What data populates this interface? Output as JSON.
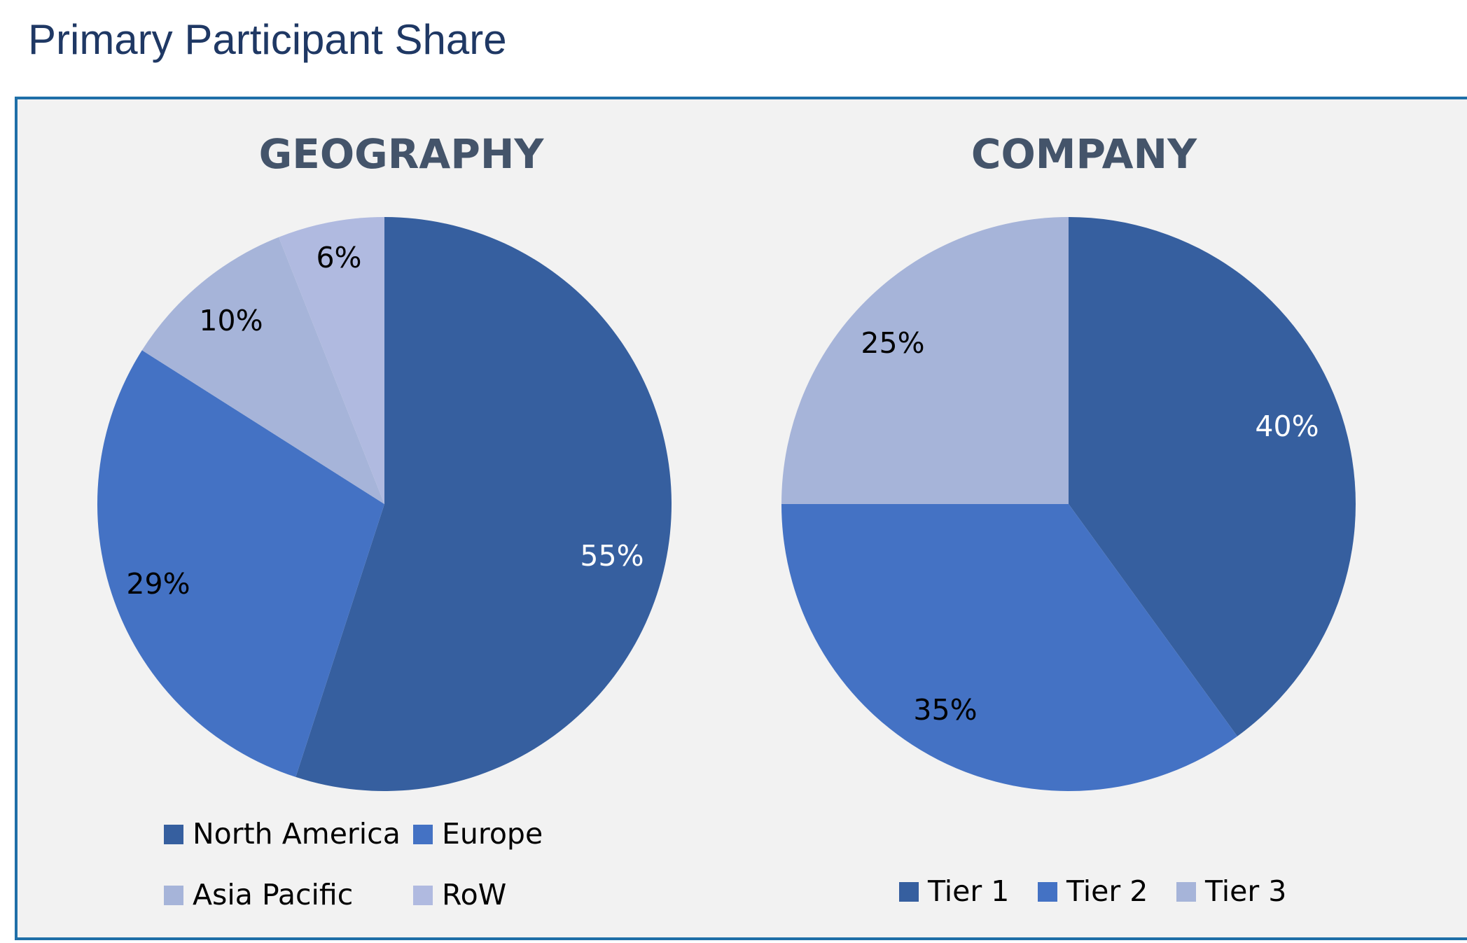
{
  "page": {
    "title": "Primary Participant Share"
  },
  "colors": {
    "panel_background": "#f2f2f2",
    "panel_border": "#1f6fa8",
    "title": "#1f3864",
    "chart_title": "#44546a"
  },
  "chart_data": [
    {
      "type": "pie",
      "title": "GEOGRAPHY",
      "start": "12-o'clock",
      "direction": "clockwise",
      "legend_position": "bottom",
      "slices": [
        {
          "label": "North America",
          "value": 55,
          "display": "55%",
          "color": "#365f9f",
          "label_color": "#ffffff"
        },
        {
          "label": "Europe",
          "value": 29,
          "display": "29%",
          "color": "#4472c4",
          "label_color": "#000000"
        },
        {
          "label": "Asia Pacific",
          "value": 10,
          "display": "10%",
          "color": "#a6b4d9",
          "label_color": "#000000"
        },
        {
          "label": "RoW",
          "value": 6,
          "display": "6%",
          "color": "#b0bae0",
          "label_color": "#000000"
        }
      ]
    },
    {
      "type": "pie",
      "title": "COMPANY",
      "start": "12-o'clock",
      "direction": "clockwise",
      "legend_position": "bottom",
      "slices": [
        {
          "label": "Tier 1",
          "value": 40,
          "display": "40%",
          "color": "#365f9f",
          "label_color": "#ffffff"
        },
        {
          "label": "Tier 2",
          "value": 35,
          "display": "35%",
          "color": "#4472c4",
          "label_color": "#000000"
        },
        {
          "label": "Tier 3",
          "value": 25,
          "display": "25%",
          "color": "#a6b4d9",
          "label_color": "#000000"
        }
      ]
    }
  ]
}
